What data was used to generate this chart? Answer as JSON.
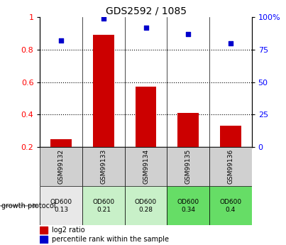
{
  "title": "GDS2592 / 1085",
  "samples": [
    "GSM99132",
    "GSM99133",
    "GSM99134",
    "GSM99135",
    "GSM99136"
  ],
  "log2_ratio": [
    0.25,
    0.89,
    0.57,
    0.41,
    0.33
  ],
  "percentile_rank_pct": [
    82,
    99,
    92,
    87,
    80
  ],
  "bar_color": "#cc0000",
  "dot_color": "#0000cc",
  "ylim_left": [
    0.2,
    1.0
  ],
  "ylim_right": [
    0,
    100
  ],
  "yticks_left": [
    0.2,
    0.4,
    0.6,
    0.8,
    1.0
  ],
  "yticks_right": [
    0,
    25,
    50,
    75,
    100
  ],
  "ytick_labels_left": [
    "0.2",
    "0.4",
    "0.6",
    "0.8",
    "1"
  ],
  "ytick_labels_right": [
    "0",
    "25",
    "50",
    "75",
    "100%"
  ],
  "growth_protocol_label": "growth protocol",
  "protocol_row": [
    "OD600\n0.13",
    "OD600\n0.21",
    "OD600\n0.28",
    "OD600\n0.34",
    "OD600\n0.4"
  ],
  "protocol_colors": [
    "#e8e8e8",
    "#c8f0c8",
    "#c8f0c8",
    "#66dd66",
    "#66dd66"
  ],
  "sample_bg_color": "#d0d0d0",
  "legend_log2": "log2 ratio",
  "legend_pct": "percentile rank within the sample",
  "bar_width": 0.5
}
